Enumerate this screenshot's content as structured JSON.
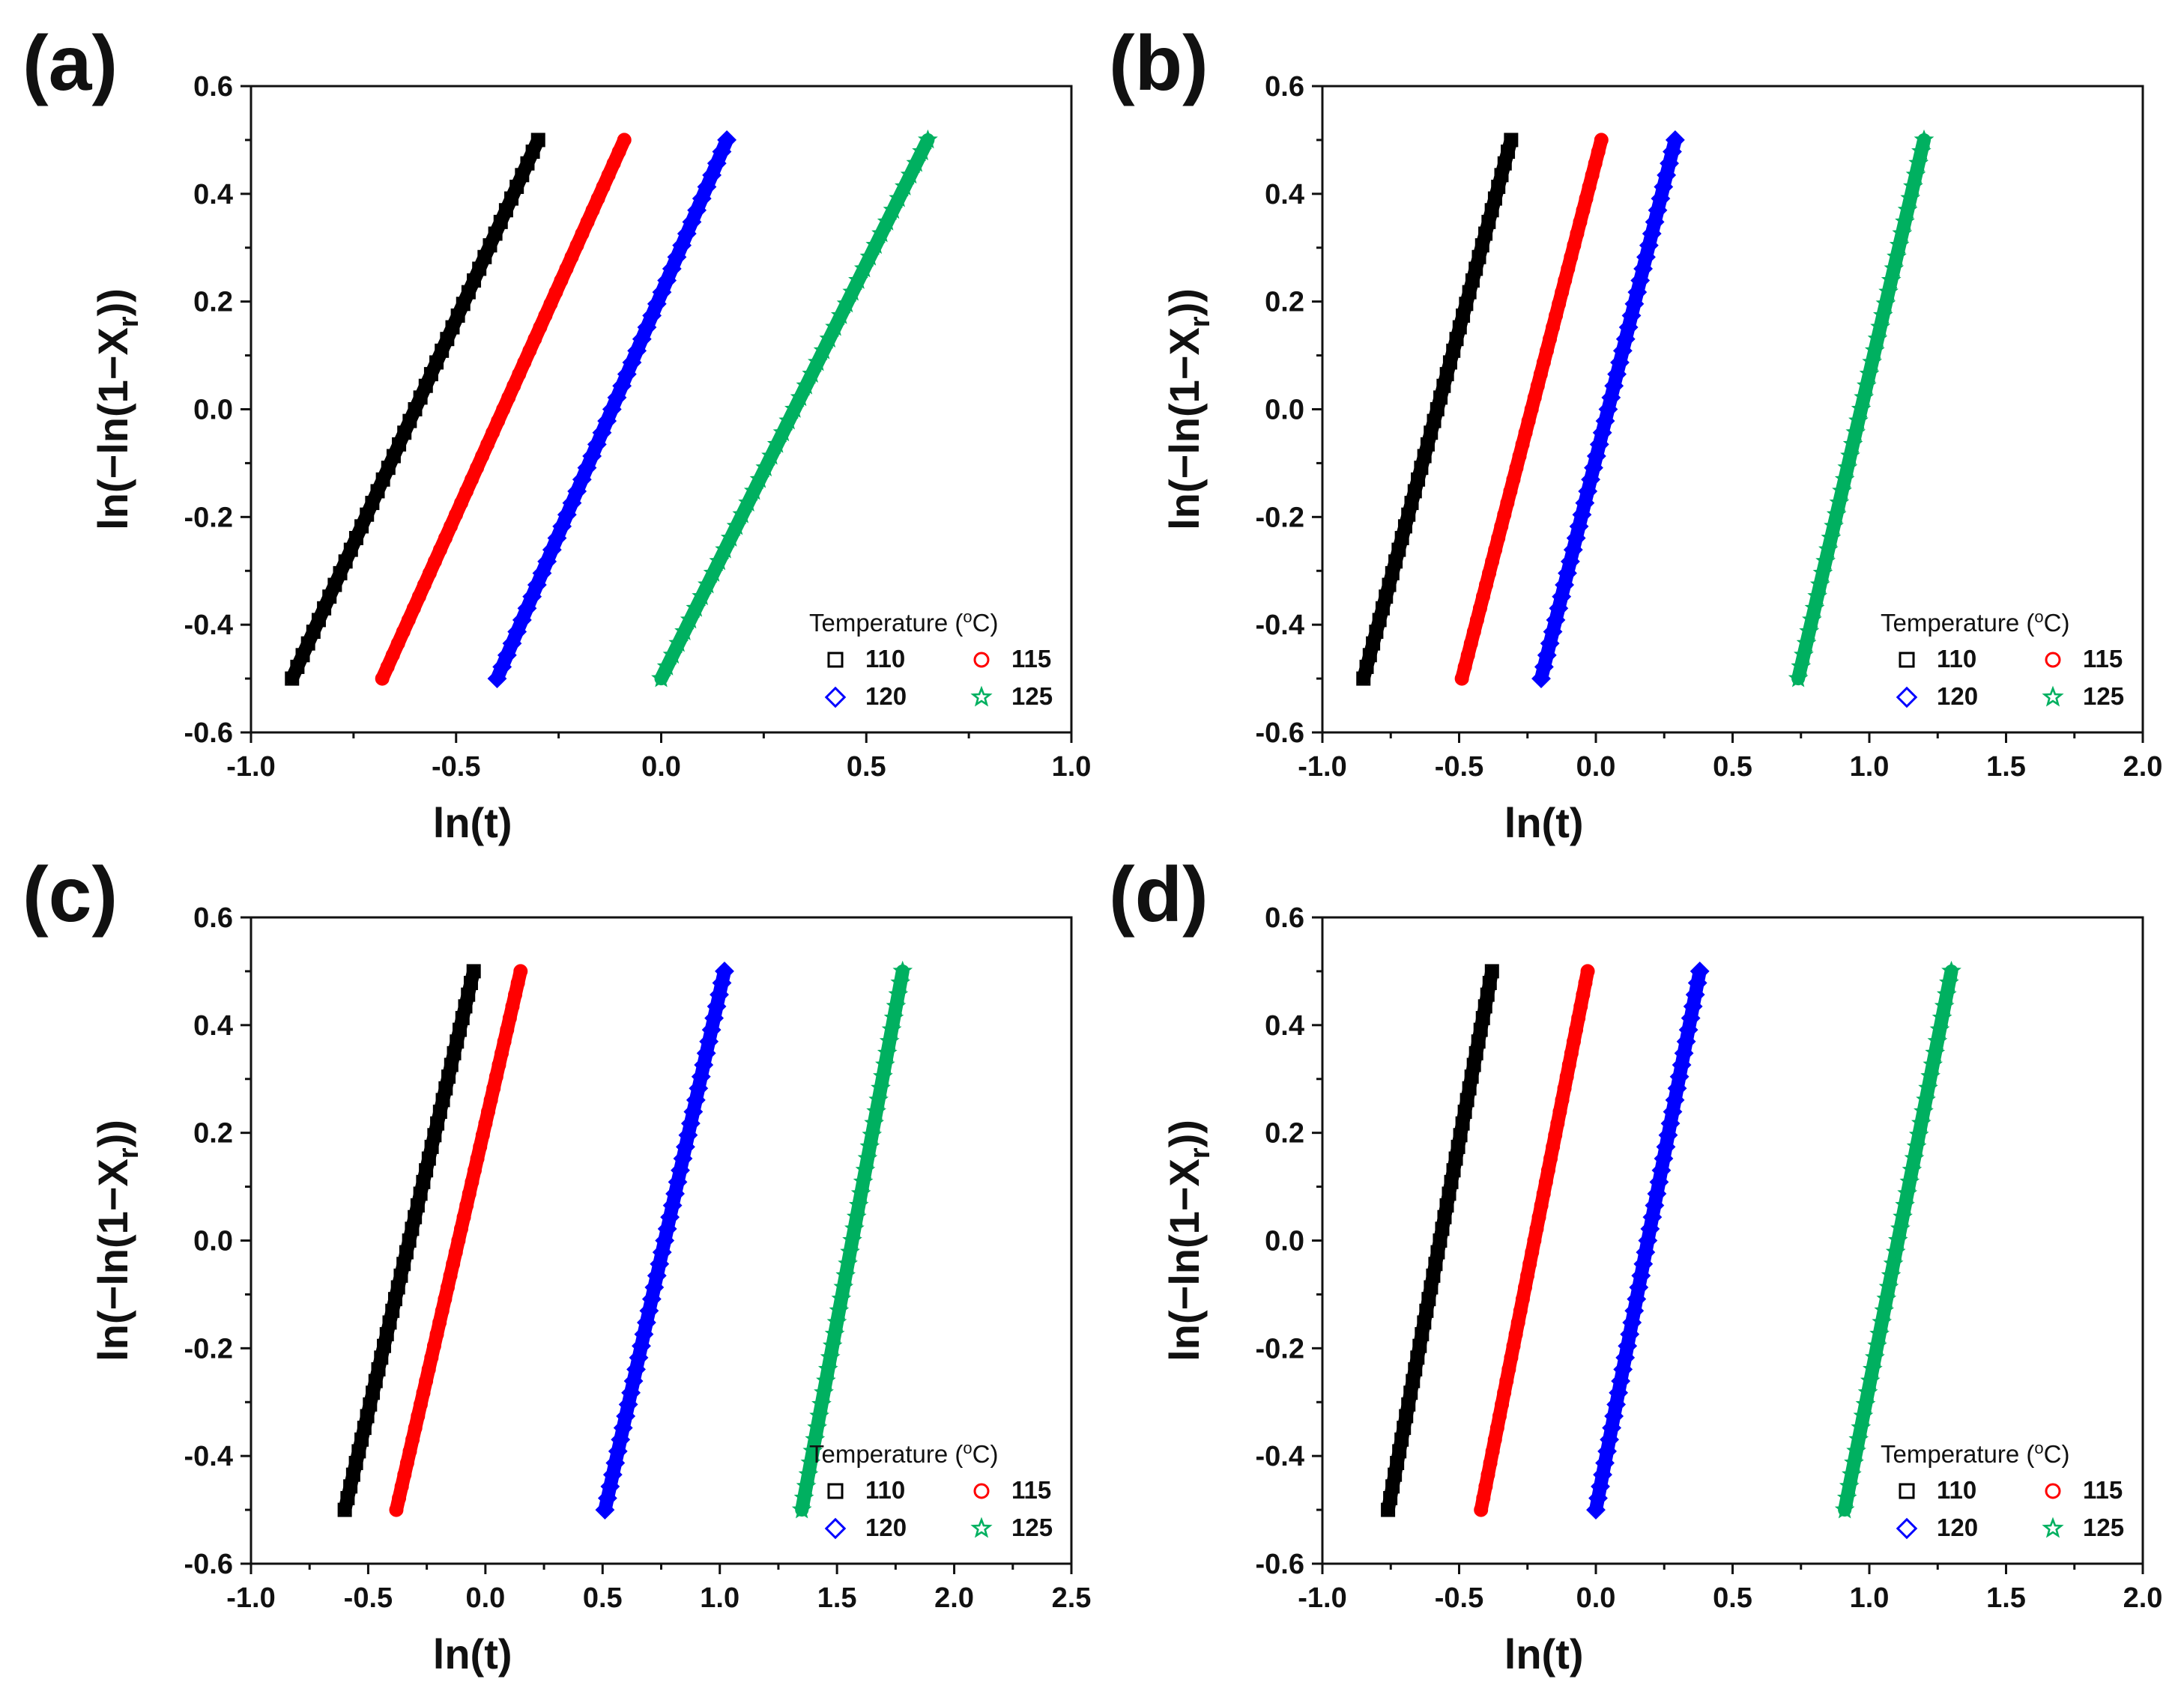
{
  "figure": {
    "axis_common": {
      "xlabel": "ln(t)",
      "ylabel_main": "ln(−ln(1−X",
      "ylabel_sub": "r",
      "ylabel_end": "))"
    },
    "legend_common": {
      "title_main": "Temperature (",
      "title_sup": "o",
      "title_end": "C)"
    }
  },
  "chart_data": [
    {
      "panel": "(a)",
      "type": "scatter",
      "xlim": [
        -1.0,
        1.0
      ],
      "ylim": [
        -0.6,
        0.6
      ],
      "xticks": [
        -1.0,
        -0.5,
        0.0,
        0.5,
        1.0
      ],
      "yticks": [
        -0.6,
        -0.4,
        -0.2,
        0.0,
        0.2,
        0.4,
        0.6
      ],
      "xtick_labels": [
        "-1.0",
        "-0.5",
        "0.0",
        "0.5",
        "1.0"
      ],
      "ytick_labels": [
        "-0.6",
        "-0.4",
        "-0.2",
        "0.0",
        "0.2",
        "0.4",
        "0.6"
      ],
      "series": [
        {
          "name": "110",
          "marker": "square",
          "color": "#000000",
          "x_start": -0.9,
          "x_end": -0.3,
          "y_start": -0.5,
          "y_end": 0.5
        },
        {
          "name": "115",
          "marker": "circle",
          "color": "#ff0000",
          "x_start": -0.68,
          "x_end": -0.09,
          "y_start": -0.5,
          "y_end": 0.5
        },
        {
          "name": "120",
          "marker": "diamond",
          "color": "#0000ff",
          "x_start": -0.4,
          "x_end": 0.16,
          "y_start": -0.5,
          "y_end": 0.5
        },
        {
          "name": "125",
          "marker": "star",
          "color": "#00b060",
          "x_start": 0.0,
          "x_end": 0.65,
          "y_start": -0.5,
          "y_end": 0.5
        }
      ],
      "xlabel": "ln(t)",
      "legend": "bottom-right"
    },
    {
      "panel": "(b)",
      "type": "scatter",
      "xlim": [
        -1.0,
        2.0
      ],
      "ylim": [
        -0.6,
        0.6
      ],
      "xticks": [
        -1.0,
        -0.5,
        0.0,
        0.5,
        1.0,
        1.5,
        2.0
      ],
      "yticks": [
        -0.6,
        -0.4,
        -0.2,
        0.0,
        0.2,
        0.4,
        0.6
      ],
      "xtick_labels": [
        "-1.0",
        "-0.5",
        "0.0",
        "0.5",
        "1.0",
        "1.5",
        "2.0"
      ],
      "ytick_labels": [
        "-0.6",
        "-0.4",
        "-0.2",
        "0.0",
        "0.2",
        "0.4",
        "0.6"
      ],
      "series": [
        {
          "name": "110",
          "marker": "square",
          "color": "#000000",
          "x_start": -0.85,
          "x_end": -0.31,
          "y_start": -0.5,
          "y_end": 0.5
        },
        {
          "name": "115",
          "marker": "circle",
          "color": "#ff0000",
          "x_start": -0.49,
          "x_end": 0.02,
          "y_start": -0.5,
          "y_end": 0.5
        },
        {
          "name": "120",
          "marker": "diamond",
          "color": "#0000ff",
          "x_start": -0.2,
          "x_end": 0.29,
          "y_start": -0.5,
          "y_end": 0.5
        },
        {
          "name": "125",
          "marker": "star",
          "color": "#00b060",
          "x_start": 0.74,
          "x_end": 1.2,
          "y_start": -0.5,
          "y_end": 0.5
        }
      ],
      "xlabel": "ln(t)",
      "legend": "bottom-right"
    },
    {
      "panel": "(c)",
      "type": "scatter",
      "xlim": [
        -1.0,
        2.5
      ],
      "ylim": [
        -0.6,
        0.6
      ],
      "xticks": [
        -1.0,
        -0.5,
        0.0,
        0.5,
        1.0,
        1.5,
        2.0,
        2.5
      ],
      "yticks": [
        -0.6,
        -0.4,
        -0.2,
        0.0,
        0.2,
        0.4,
        0.6
      ],
      "xtick_labels": [
        "-1.0",
        "-0.5",
        "0.0",
        "0.5",
        "1.0",
        "1.5",
        "2.0",
        "2.5"
      ],
      "ytick_labels": [
        "-0.6",
        "-0.4",
        "-0.2",
        "0.0",
        "0.2",
        "0.4",
        "0.6"
      ],
      "series": [
        {
          "name": "110",
          "marker": "square",
          "color": "#000000",
          "x_start": -0.6,
          "x_end": -0.05,
          "y_start": -0.5,
          "y_end": 0.5
        },
        {
          "name": "115",
          "marker": "circle",
          "color": "#ff0000",
          "x_start": -0.38,
          "x_end": 0.15,
          "y_start": -0.5,
          "y_end": 0.5
        },
        {
          "name": "120",
          "marker": "diamond",
          "color": "#0000ff",
          "x_start": 0.51,
          "x_end": 1.02,
          "y_start": -0.5,
          "y_end": 0.5
        },
        {
          "name": "125",
          "marker": "star",
          "color": "#00b060",
          "x_start": 1.35,
          "x_end": 1.78,
          "y_start": -0.5,
          "y_end": 0.5
        }
      ],
      "xlabel": "ln(t)",
      "legend": "bottom-right"
    },
    {
      "panel": "(d)",
      "type": "scatter",
      "xlim": [
        -1.0,
        2.0
      ],
      "ylim": [
        -0.6,
        0.6
      ],
      "xticks": [
        -1.0,
        -0.5,
        0.0,
        0.5,
        1.0,
        1.5,
        2.0
      ],
      "yticks": [
        -0.6,
        -0.4,
        -0.2,
        0.0,
        0.2,
        0.4,
        0.6
      ],
      "xtick_labels": [
        "-1.0",
        "-0.5",
        "0.0",
        "0.5",
        "1.0",
        "1.5",
        "2.0"
      ],
      "ytick_labels": [
        "-0.6",
        "-0.4",
        "-0.2",
        "0.0",
        "0.2",
        "0.4",
        "0.6"
      ],
      "series": [
        {
          "name": "110",
          "marker": "square",
          "color": "#000000",
          "x_start": -0.76,
          "x_end": -0.38,
          "y_start": -0.5,
          "y_end": 0.5
        },
        {
          "name": "115",
          "marker": "circle",
          "color": "#ff0000",
          "x_start": -0.42,
          "x_end": -0.03,
          "y_start": -0.5,
          "y_end": 0.5
        },
        {
          "name": "120",
          "marker": "diamond",
          "color": "#0000ff",
          "x_start": 0.0,
          "x_end": 0.38,
          "y_start": -0.5,
          "y_end": 0.5
        },
        {
          "name": "125",
          "marker": "star",
          "color": "#00b060",
          "x_start": 0.91,
          "x_end": 1.3,
          "y_start": -0.5,
          "y_end": 0.5
        }
      ],
      "xlabel": "ln(t)",
      "legend": "bottom-right"
    }
  ]
}
